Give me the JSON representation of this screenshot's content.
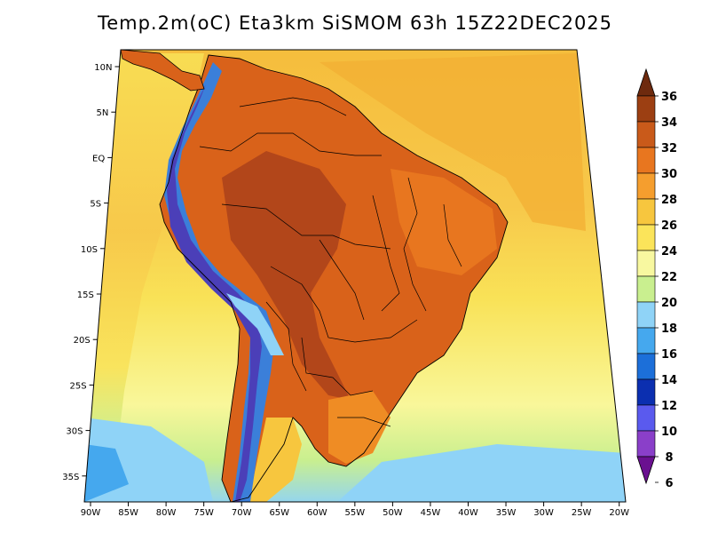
{
  "title": "Temp.2m(oC) Eta3km SiSMOM 63h 15Z22DEC2025",
  "map": {
    "lat_ticks": [
      "10N",
      "5N",
      "EQ",
      "5S",
      "10S",
      "15S",
      "20S",
      "25S",
      "30S",
      "35S"
    ],
    "lon_ticks": [
      "90W",
      "85W",
      "80W",
      "75W",
      "70W",
      "65W",
      "60W",
      "55W",
      "50W",
      "45W",
      "40W",
      "35W",
      "30W",
      "25W",
      "20W"
    ],
    "colors": {
      "ocean_warm": "#f5bd3c",
      "ocean_mid": "#f9e257",
      "ocean_cool": "#f9f79a",
      "ocean_south": "#c9ef8f",
      "ocean_cold": "#8fd3f7",
      "land_hot": "#d9621a",
      "land_very_hot": "#b2461a",
      "land_warm": "#ef8c24",
      "andes_cold": "#3b7fd9",
      "andes_colder": "#4b3fb8"
    }
  },
  "colorbar": {
    "labels": [
      "36",
      "34",
      "32",
      "30",
      "28",
      "26",
      "24",
      "22",
      "20",
      "18",
      "16",
      "14",
      "12",
      "10",
      "8",
      "6"
    ],
    "colors": [
      "#6e2a0e",
      "#9c3f12",
      "#c95a1a",
      "#e8761f",
      "#f59e2e",
      "#f7c63e",
      "#fbe45a",
      "#f8f8a0",
      "#c9ef8f",
      "#8fd3f7",
      "#45a8ee",
      "#1c6fd9",
      "#0b2fb0",
      "#5a5aee",
      "#8a3fc9",
      "#6a1090"
    ]
  }
}
